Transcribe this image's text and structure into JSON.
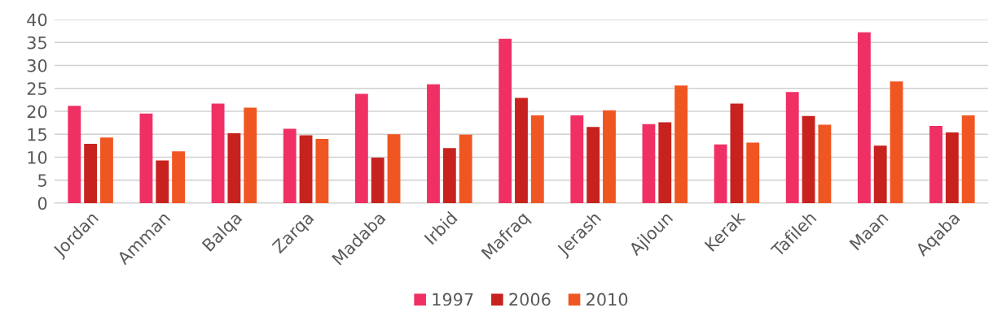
{
  "chart_data": {
    "type": "bar",
    "categories": [
      "Jordan",
      "Amman",
      "Balqa",
      "Zarqa",
      "Madaba",
      "Irbid",
      "Mafraq",
      "Jerash",
      "Ajloun",
      "Kerak",
      "Tafileh",
      "Maan",
      "Aqaba"
    ],
    "series": [
      {
        "name": "1997",
        "color": "#f03064",
        "values": [
          21.2,
          19.5,
          21.7,
          16.2,
          23.8,
          25.9,
          35.8,
          19.1,
          17.2,
          12.8,
          24.2,
          37.2,
          16.8
        ]
      },
      {
        "name": "2006",
        "color": "#c8221f",
        "values": [
          12.9,
          9.3,
          15.2,
          14.8,
          9.9,
          12.0,
          22.9,
          16.6,
          17.6,
          21.7,
          19.0,
          12.5,
          15.4
        ]
      },
      {
        "name": "2010",
        "color": "#f05622",
        "values": [
          14.3,
          11.3,
          20.8,
          14.0,
          15.0,
          14.9,
          19.1,
          20.2,
          25.6,
          13.2,
          17.1,
          26.5,
          19.1
        ]
      }
    ],
    "ylim": [
      0,
      40
    ],
    "yticks": [
      0,
      5,
      10,
      15,
      20,
      25,
      30,
      35,
      40
    ],
    "grid": "y",
    "legend": "bottom"
  }
}
